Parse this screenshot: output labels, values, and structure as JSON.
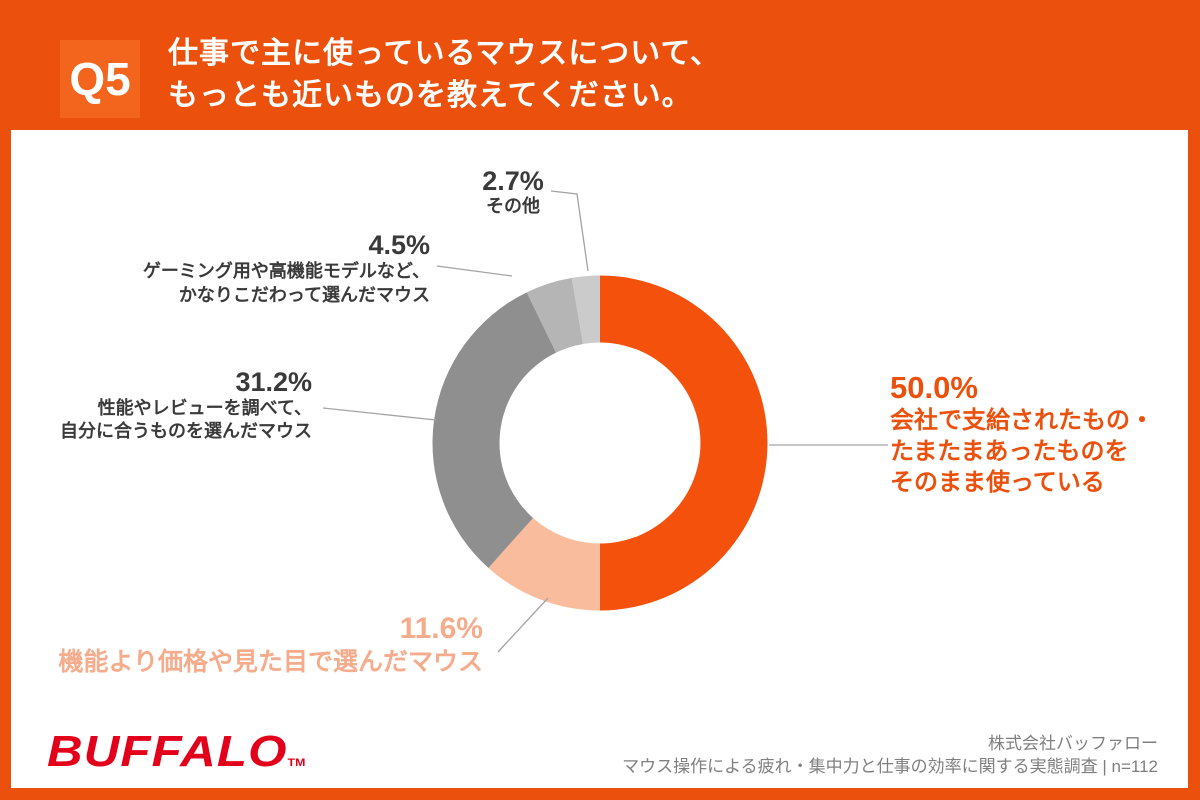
{
  "header": {
    "badge": "Q5",
    "title_lines": [
      "仕事で主に使っているマウスについて、",
      "もっとも近いものを教えてください。"
    ]
  },
  "chart_data": {
    "type": "pie",
    "subtype": "donut",
    "title": "仕事で主に使っているマウスについて、もっとも近いものを教えてください。",
    "unit": "%",
    "start_angle_deg": 0,
    "direction": "clockwise",
    "inner_radius_ratio": 0.6,
    "segments": [
      {
        "label": "会社で支給されたもの・たまたまあったものをそのまま使っている",
        "value": 50.0,
        "color": "#F4520C"
      },
      {
        "label": "機能より価格や見た目で選んだマウス",
        "value": 11.6,
        "color": "#F9BD9D"
      },
      {
        "label": "性能やレビューを調べて、自分に合うものを選んだマウス",
        "value": 31.2,
        "color": "#8F8F8F"
      },
      {
        "label": "ゲーミング用や高機能モデルなど、かなりこだわって選んだマウス",
        "value": 4.5,
        "color": "#B5B5B5"
      },
      {
        "label": "その他",
        "value": 2.7,
        "color": "#CBCBCB"
      }
    ]
  },
  "callouts": {
    "company": {
      "pct": "50.0%",
      "line1": "会社で支給されたもの・",
      "line2": "たまたまあったものを",
      "line3": "そのまま使っている"
    },
    "price": {
      "pct": "11.6%",
      "line1": "機能より価格や見た目で選んだマウス"
    },
    "review": {
      "pct": "31.2%",
      "line1": "性能やレビューを調べて、",
      "line2": "自分に合うものを選んだマウス"
    },
    "gaming": {
      "pct": "4.5%",
      "line1": "ゲーミング用や高機能モデルなど、",
      "line2": "かなりこだわって選んだマウス"
    },
    "other": {
      "pct": "2.7%",
      "line1": "その他"
    }
  },
  "footer": {
    "logo_text": "BUFFALO",
    "logo_tm": "TM",
    "source_line1": "株式会社バッファロー",
    "source_line2": "マウス操作による疲れ・集中力と仕事の効率に関する実態調査 | n=112"
  },
  "colors": {
    "background_orange": "#EB510D",
    "badge_orange": "#F3641C",
    "accent_orange": "#F4520C",
    "peach": "#F9BD9D",
    "gray_dark": "#8F8F8F",
    "gray_mid": "#B5B5B5",
    "gray_light": "#CBCBCB",
    "logo_red": "#E3001B",
    "text_dark": "#3A3A3A",
    "source_gray": "#7F7F7F"
  }
}
